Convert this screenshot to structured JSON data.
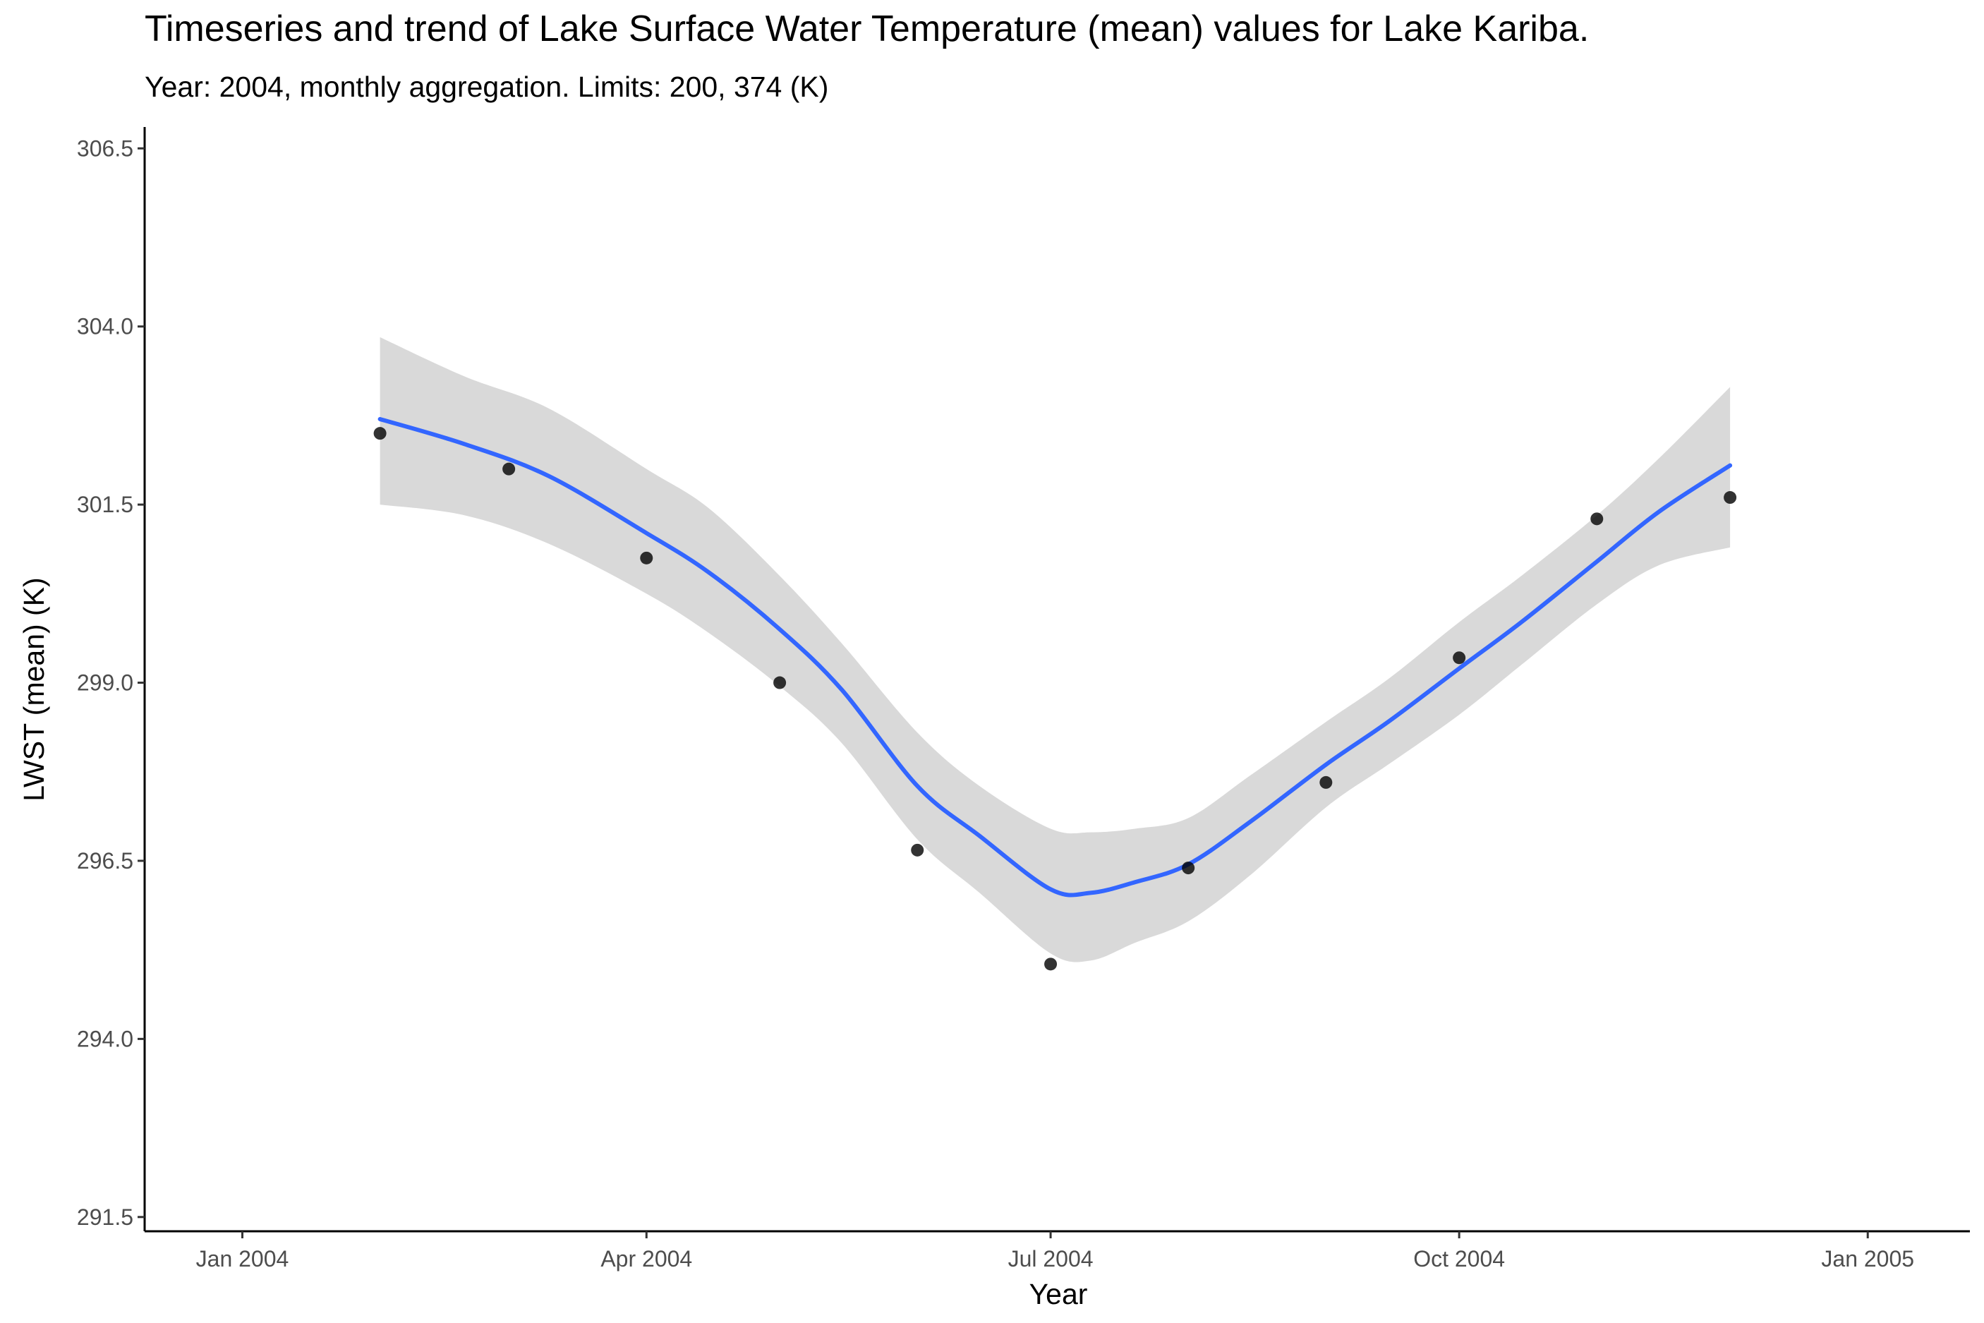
{
  "chart_data": {
    "type": "scatter",
    "title": "Timeseries and trend of Lake Surface Water Temperature (mean) values for Lake Kariba.",
    "subtitle": "Year: 2004, monthly aggregation. Limits: 200, 374 (K)",
    "xlabel": "Year",
    "ylabel": "LWST (mean) (K)",
    "xlim": [
      "2003-12-10",
      "2005-01-24"
    ],
    "ylim": [
      291.3,
      306.8
    ],
    "x_ticks": [
      {
        "date": "2004-01-01",
        "label": "Jan 2004"
      },
      {
        "date": "2004-04-01",
        "label": "Apr 2004"
      },
      {
        "date": "2004-07-01",
        "label": "Jul 2004"
      },
      {
        "date": "2004-10-01",
        "label": "Oct 2004"
      },
      {
        "date": "2005-01-01",
        "label": "Jan 2005"
      }
    ],
    "y_ticks": [
      291.5,
      294.0,
      296.5,
      299.0,
      301.5,
      304.0,
      306.5
    ],
    "y_tick_labels": [
      "291.5",
      "294.0",
      "296.5",
      "299.0",
      "301.5",
      "304.0",
      "306.5"
    ],
    "grid": false,
    "series": [
      {
        "kind": "points",
        "color": "#000000",
        "points": [
          {
            "x": "2004-02-01",
            "y": 302.5
          },
          {
            "x": "2004-03-01",
            "y": 302.0
          },
          {
            "x": "2004-04-01",
            "y": 300.75
          },
          {
            "x": "2004-05-01",
            "y": 299.0
          },
          {
            "x": "2004-06-01",
            "y": 296.65
          },
          {
            "x": "2004-07-01",
            "y": 295.05
          },
          {
            "x": "2004-08-01",
            "y": 296.4
          },
          {
            "x": "2004-09-01",
            "y": 297.6
          },
          {
            "x": "2004-10-01",
            "y": 299.35
          },
          {
            "x": "2004-11-01",
            "y": 301.3
          },
          {
            "x": "2004-12-01",
            "y": 301.6
          }
        ]
      },
      {
        "kind": "trend",
        "color": "#3366FF",
        "band_color": "#D9D9D9",
        "points": [
          {
            "x": "2004-02-01",
            "y": 302.7,
            "lo": 301.5,
            "hi": 303.85
          },
          {
            "x": "2004-02-20",
            "y": 302.35,
            "lo": 301.35,
            "hi": 303.3
          },
          {
            "x": "2004-03-10",
            "y": 301.9,
            "lo": 300.95,
            "hi": 302.85
          },
          {
            "x": "2004-04-01",
            "y": 301.1,
            "lo": 300.25,
            "hi": 302.0
          },
          {
            "x": "2004-04-15",
            "y": 300.55,
            "lo": 299.7,
            "hi": 301.45
          },
          {
            "x": "2004-05-01",
            "y": 299.75,
            "lo": 298.95,
            "hi": 300.5
          },
          {
            "x": "2004-05-15",
            "y": 298.9,
            "lo": 298.15,
            "hi": 299.55
          },
          {
            "x": "2004-06-01",
            "y": 297.55,
            "lo": 296.8,
            "hi": 298.3
          },
          {
            "x": "2004-06-15",
            "y": 296.85,
            "lo": 296.05,
            "hi": 297.55
          },
          {
            "x": "2004-07-01",
            "y": 296.1,
            "lo": 295.2,
            "hi": 296.95
          },
          {
            "x": "2004-07-10",
            "y": 296.05,
            "lo": 295.1,
            "hi": 296.9
          },
          {
            "x": "2004-07-20",
            "y": 296.2,
            "lo": 295.35,
            "hi": 296.95
          },
          {
            "x": "2004-08-01",
            "y": 296.45,
            "lo": 295.65,
            "hi": 297.1
          },
          {
            "x": "2004-08-15",
            "y": 297.05,
            "lo": 296.3,
            "hi": 297.7
          },
          {
            "x": "2004-09-01",
            "y": 297.85,
            "lo": 297.25,
            "hi": 298.45
          },
          {
            "x": "2004-09-15",
            "y": 298.45,
            "lo": 297.85,
            "hi": 299.05
          },
          {
            "x": "2004-10-01",
            "y": 299.2,
            "lo": 298.55,
            "hi": 299.85
          },
          {
            "x": "2004-10-15",
            "y": 299.85,
            "lo": 299.25,
            "hi": 300.5
          },
          {
            "x": "2004-11-01",
            "y": 300.7,
            "lo": 300.1,
            "hi": 301.35
          },
          {
            "x": "2004-11-15",
            "y": 301.4,
            "lo": 300.65,
            "hi": 302.15
          },
          {
            "x": "2004-12-01",
            "y": 302.05,
            "lo": 300.9,
            "hi": 303.15
          }
        ]
      }
    ]
  }
}
